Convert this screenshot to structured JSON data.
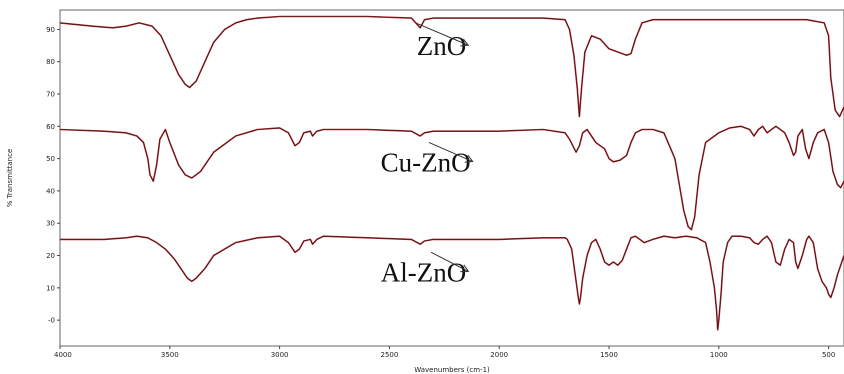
{
  "chart_data": {
    "type": "line",
    "xlabel": "Wavenumbers (cm-1)",
    "ylabel": "% Transmittance",
    "xlim": [
      4000,
      430
    ],
    "ylim": [
      -8,
      96
    ],
    "x_ticks": [
      "4000",
      "3500",
      "3000",
      "2500",
      "2000",
      "1500",
      "1000",
      "500"
    ],
    "y_ticks": [
      "90",
      "80",
      "70",
      "60",
      "50",
      "40",
      "30",
      "20",
      "10",
      "-0"
    ],
    "grid": false,
    "legend": "none",
    "line_colors": {
      "measured": "#c0262b",
      "fit": "#1a1a1a"
    },
    "series": [
      {
        "x": [
          4000,
          3850,
          3760,
          3700,
          3640,
          3580,
          3540,
          3500,
          3460,
          3430,
          3410,
          3380,
          3340,
          3300,
          3250,
          3200,
          3150,
          3100,
          3000,
          2900,
          2800,
          2600,
          2400,
          2360,
          2340,
          2300,
          2000,
          1800,
          1700,
          1680,
          1660,
          1645,
          1635,
          1625,
          1610,
          1580,
          1540,
          1500,
          1460,
          1420,
          1400,
          1380,
          1350,
          1300,
          1200,
          1000,
          800,
          600,
          520,
          500,
          490,
          470,
          450,
          430
        ],
        "y": [
          92,
          91,
          90.5,
          91,
          92,
          91,
          88,
          82,
          76,
          73,
          72,
          74,
          80,
          86,
          90,
          92,
          93,
          93.5,
          94,
          94,
          94,
          94,
          93.5,
          90.5,
          93,
          93.5,
          93.5,
          93.5,
          93,
          90,
          82,
          72,
          63,
          72,
          83,
          88,
          87,
          84,
          83,
          82,
          82.5,
          87,
          92,
          93,
          93,
          93,
          93,
          93,
          92,
          88,
          75,
          65,
          63,
          66
        ]
      },
      {
        "x": [
          4000,
          3800,
          3700,
          3650,
          3620,
          3600,
          3590,
          3575,
          3560,
          3545,
          3520,
          3500,
          3460,
          3430,
          3400,
          3360,
          3300,
          3200,
          3100,
          3000,
          2960,
          2930,
          2910,
          2890,
          2860,
          2850,
          2830,
          2800,
          2600,
          2400,
          2360,
          2340,
          2300,
          2000,
          1800,
          1700,
          1680,
          1650,
          1635,
          1620,
          1600,
          1560,
          1520,
          1500,
          1480,
          1450,
          1420,
          1400,
          1380,
          1350,
          1300,
          1250,
          1200,
          1180,
          1160,
          1140,
          1125,
          1110,
          1090,
          1060,
          1000,
          950,
          900,
          860,
          840,
          820,
          800,
          780,
          760,
          740,
          720,
          700,
          680,
          660,
          650,
          640,
          620,
          605,
          590,
          570,
          550,
          520,
          500,
          480,
          460,
          445,
          430
        ],
        "y": [
          59,
          58.5,
          58,
          57,
          55,
          50,
          45,
          43,
          48,
          56,
          59,
          55,
          48,
          45,
          44,
          46,
          52,
          57,
          59,
          59.5,
          58,
          54,
          55,
          58,
          58.5,
          57,
          58.5,
          59,
          59,
          58.5,
          57,
          58,
          58.5,
          58.5,
          59,
          58,
          56,
          52,
          54,
          58,
          59,
          55,
          53,
          50,
          49,
          49.5,
          51,
          55,
          58,
          59,
          59,
          58,
          50,
          42,
          34,
          29,
          28,
          32,
          45,
          55,
          58,
          59.5,
          60,
          59,
          57,
          59,
          60,
          58,
          59,
          60,
          59,
          58,
          55,
          51,
          52,
          57,
          59,
          53,
          50,
          55,
          58,
          59,
          55,
          46,
          42,
          41,
          43
        ]
      },
      {
        "x": [
          4000,
          3800,
          3700,
          3650,
          3600,
          3560,
          3520,
          3480,
          3440,
          3420,
          3400,
          3380,
          3340,
          3300,
          3200,
          3100,
          3000,
          2960,
          2930,
          2910,
          2890,
          2860,
          2850,
          2830,
          2800,
          2600,
          2400,
          2360,
          2340,
          2300,
          2000,
          1800,
          1700,
          1690,
          1670,
          1650,
          1640,
          1635,
          1630,
          1620,
          1600,
          1580,
          1560,
          1540,
          1520,
          1500,
          1480,
          1460,
          1440,
          1420,
          1400,
          1380,
          1360,
          1340,
          1300,
          1250,
          1200,
          1150,
          1100,
          1060,
          1040,
          1020,
          1010,
          1005,
          1000,
          990,
          980,
          960,
          940,
          900,
          860,
          840,
          820,
          800,
          780,
          760,
          740,
          720,
          700,
          680,
          660,
          650,
          640,
          620,
          600,
          590,
          570,
          550,
          530,
          510,
          500,
          490,
          475,
          460,
          445,
          430
        ],
        "y": [
          25,
          25,
          25.5,
          26,
          25.5,
          24,
          22,
          19,
          15,
          13,
          12,
          13,
          16,
          20,
          24,
          25.5,
          26,
          24,
          21,
          22,
          24.5,
          25,
          23.5,
          25,
          26,
          25.5,
          25,
          23.5,
          24.5,
          25,
          25,
          25.5,
          25.5,
          25,
          22,
          12,
          7,
          5,
          7,
          13,
          20,
          24,
          25,
          22,
          18,
          17,
          18,
          17,
          18.5,
          22,
          25.5,
          26,
          25,
          24,
          25,
          26,
          25.5,
          26,
          25.5,
          24,
          18,
          10,
          3,
          -3,
          0,
          8,
          18,
          24,
          26,
          26,
          25.5,
          24,
          23.5,
          25,
          26,
          24,
          18,
          17,
          22,
          25,
          24,
          18,
          16,
          20,
          25,
          26,
          24,
          16,
          12,
          10,
          8,
          7,
          10,
          14,
          17,
          20
        ]
      }
    ],
    "annotations": [
      {
        "text": "ZnO",
        "at": [
          2150,
          82
        ],
        "arrow_to": [
          2380,
          92
        ]
      },
      {
        "text": "Cu-ZnO",
        "at": [
          2130,
          46
        ],
        "arrow_to": [
          2320,
          55
        ]
      },
      {
        "text": "Al-ZnO",
        "at": [
          2150,
          12
        ],
        "arrow_to": [
          2310,
          21
        ]
      }
    ]
  }
}
